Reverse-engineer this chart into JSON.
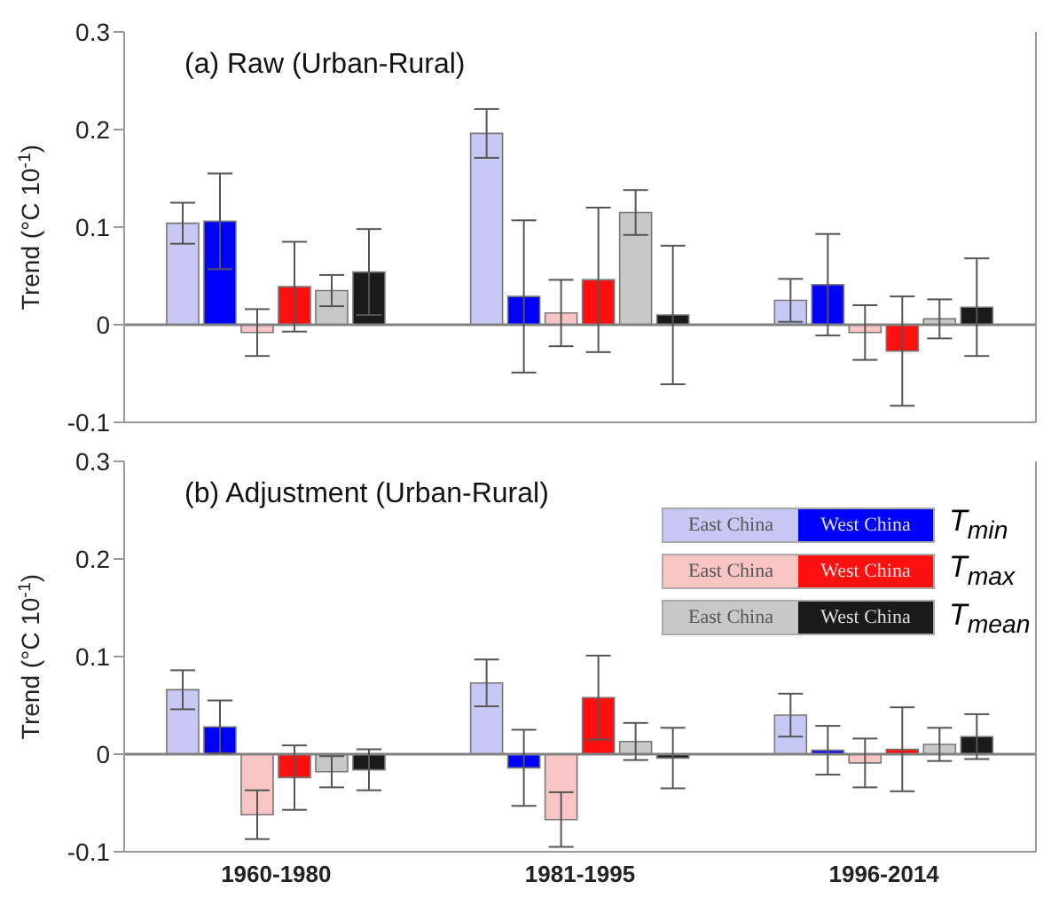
{
  "chart_data": [
    {
      "type": "bar",
      "title": "(a) Raw (Urban-Rural)",
      "ylabel": "Trend (°C 10$^{-1}$)",
      "categories": [
        null,
        null,
        null
      ],
      "ylim": [
        -0.1,
        0.3
      ],
      "yticks": [
        -0.1,
        0,
        0.1,
        0.2,
        0.3
      ],
      "tick_labels": "y",
      "grid": false,
      "ref_lines": [
        {
          "axis": "y",
          "value": 0,
          "color": "#808080"
        }
      ],
      "series": [
        {
          "color": "#c8c8f5",
          "values": [
            0.104,
            0.196,
            0.025
          ],
          "errors": [
            0.021,
            0.025,
            0.022
          ]
        },
        {
          "color": "#0000ff",
          "values": [
            0.106,
            0.029,
            0.041
          ],
          "errors": [
            0.049,
            0.078,
            0.052
          ]
        },
        {
          "color": "#f8c4c4",
          "values": [
            -0.008,
            0.012,
            -0.008
          ],
          "errors": [
            0.024,
            0.034,
            0.028
          ]
        },
        {
          "color": "#ff1010",
          "values": [
            0.039,
            0.046,
            -0.027
          ],
          "errors": [
            0.046,
            0.074,
            0.056
          ]
        },
        {
          "color": "#c8c8c8",
          "values": [
            0.035,
            0.115,
            0.006
          ],
          "errors": [
            0.016,
            0.023,
            0.02
          ]
        },
        {
          "color": "#1a1a1a",
          "values": [
            0.054,
            0.01,
            0.018
          ],
          "errors": [
            0.044,
            0.071,
            0.05
          ]
        }
      ]
    },
    {
      "type": "bar",
      "title": "(b) Adjustment (Urban-Rural)",
      "ylabel": "Trend (°C 10$^{-1}$)",
      "categories": [
        "1960-1980",
        "1981-1995",
        "1996-2014"
      ],
      "ylim": [
        -0.1,
        0.3
      ],
      "yticks": [
        -0.1,
        0,
        0.1,
        0.2,
        0.3
      ],
      "grid": false,
      "legend": "top right",
      "ref_lines": [
        {
          "axis": "y",
          "value": 0,
          "color": "#808080"
        }
      ],
      "annotations": [
        "T$_{min}$",
        "T$_{max}$",
        "T$_{mean}$"
      ],
      "series": [
        {
          "name": "East China",
          "color": "#c8c8f5",
          "values": [
            0.066,
            0.073,
            0.04
          ],
          "errors": [
            0.02,
            0.024,
            0.022
          ]
        },
        {
          "name": "West China",
          "color": "#0000ff",
          "values": [
            0.028,
            -0.014,
            0.004
          ],
          "errors": [
            0.027,
            0.039,
            0.025
          ]
        },
        {
          "name": "East China",
          "color": "#f8c4c4",
          "values": [
            -0.062,
            -0.067,
            -0.009
          ],
          "errors": [
            0.025,
            0.028,
            0.025
          ]
        },
        {
          "name": "West China",
          "color": "#ff1010",
          "values": [
            -0.024,
            0.058,
            0.005
          ],
          "errors": [
            0.033,
            0.043,
            0.043
          ]
        },
        {
          "name": "East China",
          "color": "#c8c8c8",
          "values": [
            -0.018,
            0.013,
            0.01
          ],
          "errors": [
            0.016,
            0.019,
            0.017
          ]
        },
        {
          "name": "West China",
          "color": "#1a1a1a",
          "values": [
            -0.016,
            -0.004,
            0.018
          ],
          "errors": [
            0.021,
            0.031,
            0.023
          ]
        }
      ]
    }
  ]
}
